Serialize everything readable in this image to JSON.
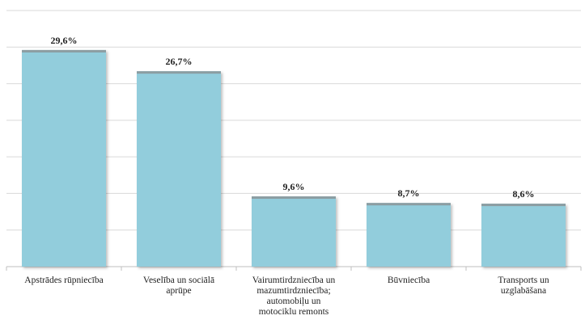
{
  "chart_data": {
    "type": "bar",
    "categories": [
      "Apstrādes rūpniecība",
      "Veselība un sociālā aprūpe",
      "Vairumtirdzniecība un mazumtirdzniecība; automobiļu un motociklu remonts",
      "Būvniecība",
      "Transports un uzglabāšana"
    ],
    "category_lines": [
      [
        "Apstrādes rūpniecība"
      ],
      [
        "Veselība un sociālā",
        "aprūpe"
      ],
      [
        "Vairumtirdzniecība un",
        "mazumtirdzniecība;",
        "automobiļu un",
        "motociklu remonts"
      ],
      [
        "Būvniecība"
      ],
      [
        "Transports un",
        "uzglabāšana"
      ]
    ],
    "values": [
      29.6,
      26.7,
      9.6,
      8.7,
      8.6
    ],
    "value_labels": [
      "29,6%",
      "26,7%",
      "9,6%",
      "8,7%",
      "8,6%"
    ],
    "ylim": [
      0,
      35
    ],
    "grid": true,
    "bar_color": "#92CDDC",
    "bar_top_color": "#8C9DA2",
    "grid_color": "#D9D9D9",
    "axis_color": "#BFBFBF"
  }
}
